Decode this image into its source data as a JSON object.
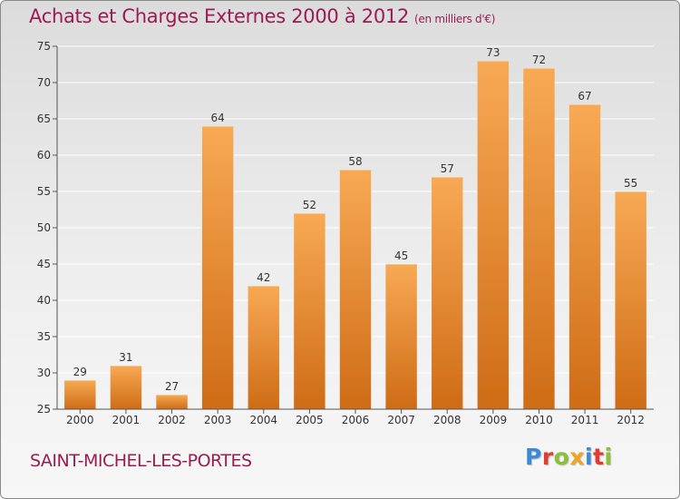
{
  "header": {
    "title": "Achats et Charges Externes 2000 à 2012",
    "unit": "(en milliers d'€)"
  },
  "footer": {
    "commune": "SAINT-MICHEL-LES-PORTES",
    "logo_letters": [
      "P",
      "r",
      "o",
      "x",
      "i",
      "t",
      "i"
    ]
  },
  "colors": {
    "title": "#9b1c50",
    "bar_light": "#f8a954",
    "bar_dark": "#cf6c16",
    "grid": "#ffffff",
    "axis": "#555555",
    "logo": [
      "#3a8bd6",
      "#e33b2f",
      "#8dbf3a",
      "#f0a420",
      "#3a8bd6",
      "#e33b2f",
      "#8dbf3a"
    ]
  },
  "chart_data": {
    "type": "bar",
    "categories": [
      "2000",
      "2001",
      "2002",
      "2003",
      "2004",
      "2005",
      "2006",
      "2007",
      "2008",
      "2009",
      "2010",
      "2011",
      "2012"
    ],
    "values": [
      29,
      31,
      27,
      64,
      42,
      52,
      58,
      45,
      57,
      73,
      72,
      67,
      55
    ],
    "ylim": [
      25,
      75
    ],
    "yticks": [
      25,
      30,
      35,
      40,
      45,
      50,
      55,
      60,
      65,
      70,
      75
    ],
    "grid": true,
    "data_labels": true
  }
}
